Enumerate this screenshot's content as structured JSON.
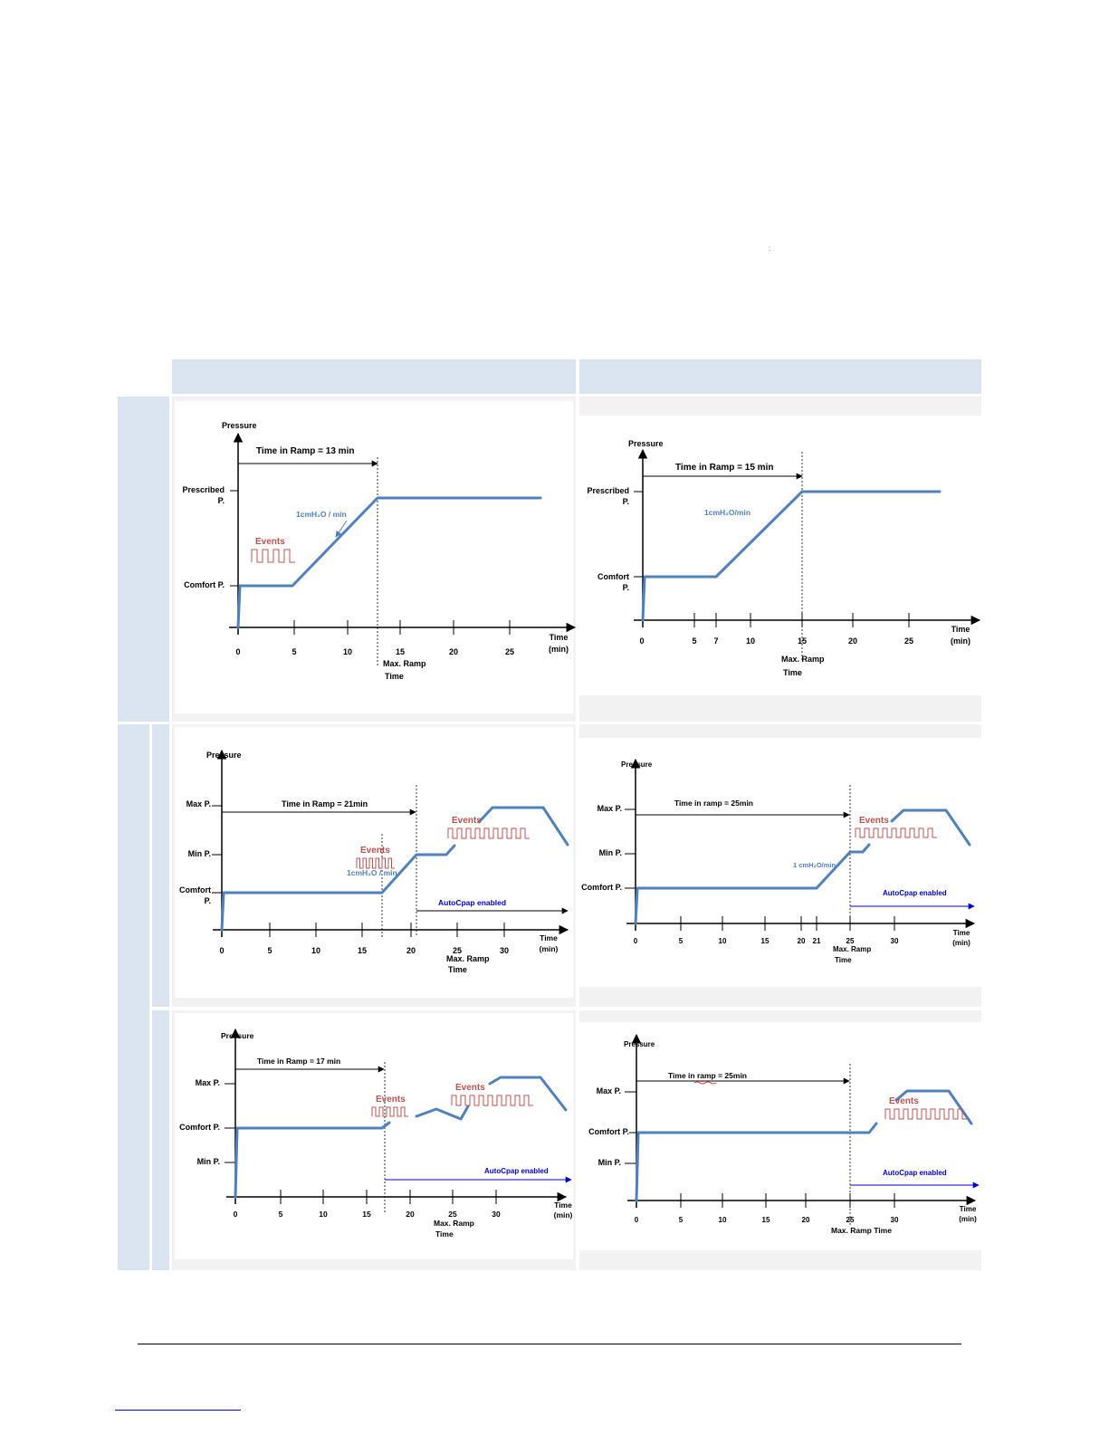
{
  "page": {
    "stray_mark": ":"
  },
  "colors": {
    "header_fill": "#dbe5f1",
    "cell_fill": "#f2f2f2",
    "pressure_line": "#4f81bd",
    "events": "#c0504d",
    "slope_label": "#4f81bd",
    "autocpap": "#0000cc",
    "axis": "#000000"
  },
  "diagrams": [
    {
      "id": "d1",
      "y_axis_title": "Pressure",
      "x_axis_title": [
        "Time",
        "(min)"
      ],
      "x_ticks": [
        "0",
        "5",
        "10",
        "15",
        "20",
        "25"
      ],
      "ramp_label": "Time in Ramp = 13 min",
      "y_levels": [
        [
          "Prescribed",
          "P."
        ],
        [
          "Comfort P."
        ]
      ],
      "slope_label": "1cmH₂O / min",
      "events": [
        "Events"
      ],
      "max_ramp_label": [
        "Max. Ramp",
        "Time"
      ]
    },
    {
      "id": "d2",
      "y_axis_title": "Pressure",
      "x_axis_title": [
        "Time",
        "(min)"
      ],
      "x_ticks": [
        "0",
        "5",
        "7",
        "10",
        "15",
        "20",
        "25"
      ],
      "ramp_label": "Time in Ramp = 15 min",
      "y_levels": [
        [
          "Prescribed",
          "P."
        ],
        [
          "Comfort",
          "P."
        ]
      ],
      "slope_label": "1cmH₂O/min",
      "events": [],
      "max_ramp_label": [
        "Max. Ramp",
        "Time"
      ]
    },
    {
      "id": "d3",
      "y_axis_title": "Pressure",
      "x_axis_title": [
        "Time",
        "(min)"
      ],
      "x_ticks": [
        "0",
        "5",
        "10",
        "15",
        "20",
        "25",
        "30"
      ],
      "ramp_label": "Time in Ramp = 21min",
      "y_levels": [
        [
          "Max P."
        ],
        [
          "Min P."
        ],
        [
          "Comfort",
          "P."
        ]
      ],
      "slope_label": "1cmH₂O / min",
      "events": [
        "Events",
        "Events"
      ],
      "autocpap_label": "AutoCpap enabled",
      "max_ramp_label": [
        "Max. Ramp",
        "Time"
      ]
    },
    {
      "id": "d4",
      "y_axis_title": "Pressure",
      "x_axis_title": [
        "Time",
        "(min)"
      ],
      "x_ticks": [
        "0",
        "5",
        "10",
        "15",
        "20",
        "21",
        "25",
        "30"
      ],
      "ramp_label": "Time in ramp = 25min",
      "y_levels": [
        [
          "Max P."
        ],
        [
          "Min P."
        ],
        [
          "Comfort P."
        ]
      ],
      "slope_label": "1 cmH₂O/min",
      "events": [
        "Events"
      ],
      "autocpap_label": "AutoCpap enabled",
      "max_ramp_label": [
        "Max. Ramp",
        "Time"
      ]
    },
    {
      "id": "d5",
      "y_axis_title": "Pressure",
      "x_axis_title": [
        "Time",
        "(min)"
      ],
      "x_ticks": [
        "0",
        "5",
        "10",
        "15",
        "20",
        "25",
        "30"
      ],
      "ramp_label": "Time in Ramp = 17 min",
      "y_levels": [
        [
          "Max P."
        ],
        [
          "Comfort P."
        ],
        [
          "Min P."
        ]
      ],
      "events": [
        "Events",
        "Events"
      ],
      "autocpap_label": "AutoCpap enabled",
      "max_ramp_label": [
        "Max. Ramp",
        "Time"
      ]
    },
    {
      "id": "d6",
      "y_axis_title": "Pressure",
      "x_axis_title": [
        "Time",
        "(min)"
      ],
      "x_ticks": [
        "0",
        "5",
        "10",
        "15",
        "20",
        "25",
        "30"
      ],
      "ramp_label": "Time in ramp = 25min",
      "y_levels": [
        [
          "Max P."
        ],
        [
          "Comfort P."
        ],
        [
          "Min P."
        ]
      ],
      "events": [
        "Events"
      ],
      "autocpap_label": "AutoCpap enabled",
      "max_ramp_label": [
        "Max. Ramp Time"
      ]
    }
  ]
}
